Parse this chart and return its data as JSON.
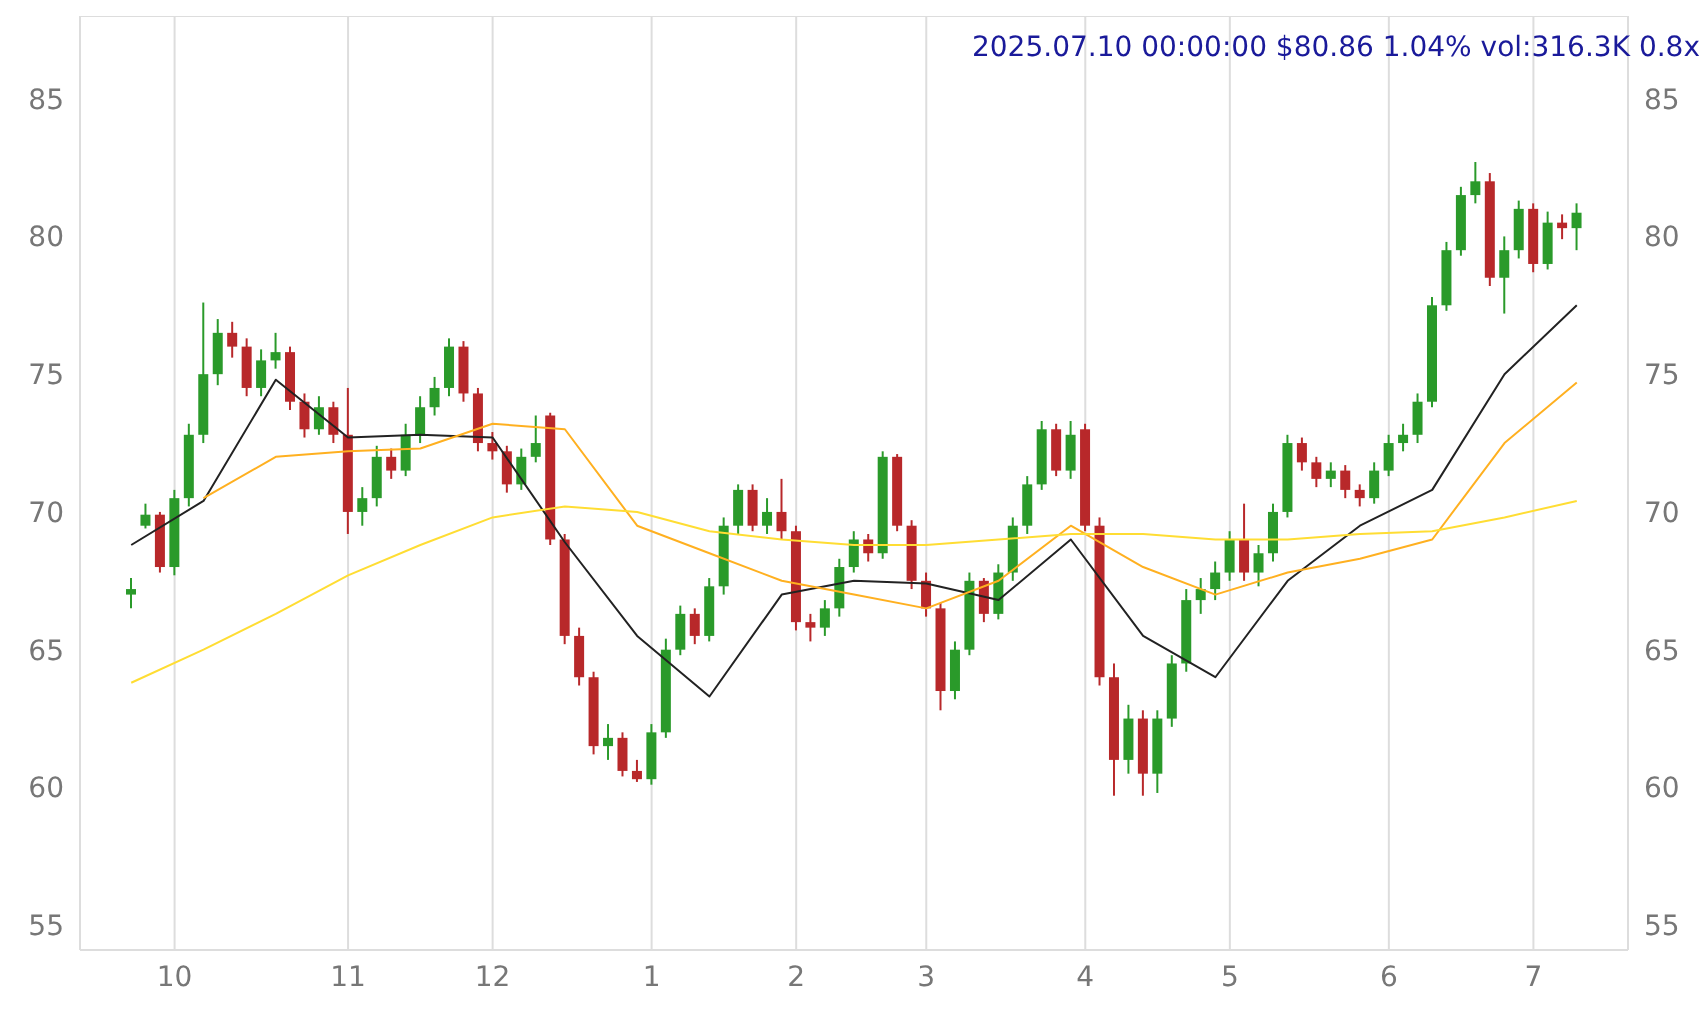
{
  "chart_data": {
    "type": "candlestick",
    "title": "2025.07.10 00:00:00 $80.86 1.04% vol:316.3K 0.8x",
    "categories": [
      null,
      null,
      null,
      "10",
      null,
      null,
      null,
      null,
      null,
      null,
      null,
      null,
      null,
      null,
      null,
      "11",
      null,
      null,
      null,
      null,
      null,
      null,
      null,
      null,
      null,
      "12",
      null,
      null,
      null,
      null,
      null,
      null,
      null,
      null,
      null,
      null,
      "1",
      null,
      null,
      null,
      null,
      null,
      null,
      null,
      null,
      null,
      "2",
      null,
      null,
      null,
      null,
      null,
      null,
      null,
      null,
      "3",
      null,
      null,
      null,
      null,
      null,
      null,
      null,
      null,
      null,
      null,
      "4",
      null,
      null,
      null,
      null,
      null,
      null,
      null,
      null,
      null,
      "5",
      null,
      null,
      null,
      null,
      null,
      null,
      null,
      null,
      null,
      null,
      "6",
      null,
      null,
      null,
      null,
      null,
      null,
      null,
      null,
      null,
      "7",
      null,
      null,
      null
    ],
    "ohlc": [
      [
        67.0,
        67.6,
        66.5,
        67.2
      ],
      [
        69.5,
        70.3,
        69.4,
        69.9
      ],
      [
        69.9,
        70.0,
        67.8,
        68.0
      ],
      [
        68.0,
        70.8,
        67.7,
        70.5
      ],
      [
        70.5,
        73.2,
        70.2,
        72.8
      ],
      [
        72.8,
        77.6,
        72.5,
        75.0
      ],
      [
        75.0,
        77.0,
        74.6,
        76.5
      ],
      [
        76.5,
        76.9,
        75.6,
        76.0
      ],
      [
        76.0,
        76.3,
        74.2,
        74.5
      ],
      [
        74.5,
        75.9,
        74.2,
        75.5
      ],
      [
        75.5,
        76.5,
        75.2,
        75.8
      ],
      [
        75.8,
        76.0,
        73.7,
        74.0
      ],
      [
        74.0,
        74.3,
        72.7,
        73.0
      ],
      [
        73.0,
        74.2,
        72.8,
        73.8
      ],
      [
        73.8,
        74.0,
        72.5,
        72.8
      ],
      [
        72.8,
        74.5,
        69.2,
        70.0
      ],
      [
        70.0,
        70.9,
        69.5,
        70.5
      ],
      [
        70.5,
        72.4,
        70.2,
        72.0
      ],
      [
        72.0,
        72.3,
        71.2,
        71.5
      ],
      [
        71.5,
        73.2,
        71.3,
        72.8
      ],
      [
        72.8,
        74.2,
        72.5,
        73.8
      ],
      [
        73.8,
        74.9,
        73.5,
        74.5
      ],
      [
        74.5,
        76.3,
        74.2,
        76.0
      ],
      [
        76.0,
        76.2,
        74.0,
        74.3
      ],
      [
        74.3,
        74.5,
        72.2,
        72.5
      ],
      [
        72.5,
        72.9,
        71.9,
        72.2
      ],
      [
        72.2,
        72.4,
        70.7,
        71.0
      ],
      [
        71.0,
        72.3,
        70.8,
        72.0
      ],
      [
        72.0,
        73.5,
        71.8,
        72.5
      ],
      [
        73.5,
        73.6,
        68.8,
        69.0
      ],
      [
        69.0,
        69.2,
        65.2,
        65.5
      ],
      [
        65.5,
        65.8,
        63.7,
        64.0
      ],
      [
        64.0,
        64.2,
        61.2,
        61.5
      ],
      [
        61.5,
        62.3,
        61.0,
        61.8
      ],
      [
        61.8,
        62.0,
        60.4,
        60.6
      ],
      [
        60.6,
        61.0,
        60.2,
        60.3
      ],
      [
        60.3,
        62.3,
        60.1,
        62.0
      ],
      [
        62.0,
        65.4,
        61.8,
        65.0
      ],
      [
        65.0,
        66.6,
        64.8,
        66.3
      ],
      [
        66.3,
        66.5,
        65.2,
        65.5
      ],
      [
        65.5,
        67.6,
        65.3,
        67.3
      ],
      [
        67.3,
        69.8,
        67.0,
        69.5
      ],
      [
        69.5,
        71.0,
        69.2,
        70.8
      ],
      [
        70.8,
        71.0,
        69.3,
        69.5
      ],
      [
        69.5,
        70.5,
        69.2,
        70.0
      ],
      [
        70.0,
        71.2,
        69.0,
        69.3
      ],
      [
        69.3,
        69.5,
        65.7,
        66.0
      ],
      [
        66.0,
        66.3,
        65.3,
        65.8
      ],
      [
        65.8,
        66.8,
        65.5,
        66.5
      ],
      [
        66.5,
        68.3,
        66.2,
        68.0
      ],
      [
        68.0,
        69.3,
        67.8,
        69.0
      ],
      [
        69.0,
        69.2,
        68.2,
        68.5
      ],
      [
        68.5,
        72.2,
        68.3,
        72.0
      ],
      [
        72.0,
        72.1,
        69.3,
        69.5
      ],
      [
        69.5,
        69.7,
        67.2,
        67.5
      ],
      [
        67.5,
        67.8,
        66.2,
        66.5
      ],
      [
        66.5,
        66.7,
        62.8,
        63.5
      ],
      [
        63.5,
        65.3,
        63.2,
        65.0
      ],
      [
        65.0,
        67.8,
        64.8,
        67.5
      ],
      [
        67.5,
        67.6,
        66.0,
        66.3
      ],
      [
        66.3,
        68.1,
        66.1,
        67.8
      ],
      [
        67.8,
        69.8,
        67.5,
        69.5
      ],
      [
        69.5,
        71.3,
        69.2,
        71.0
      ],
      [
        71.0,
        73.3,
        70.8,
        73.0
      ],
      [
        73.0,
        73.2,
        71.3,
        71.5
      ],
      [
        71.5,
        73.3,
        71.2,
        72.8
      ],
      [
        73.0,
        73.2,
        69.3,
        69.5
      ],
      [
        69.5,
        69.8,
        63.7,
        64.0
      ],
      [
        64.0,
        64.5,
        59.7,
        61.0
      ],
      [
        61.0,
        63.0,
        60.5,
        62.5
      ],
      [
        62.5,
        62.8,
        59.7,
        60.5
      ],
      [
        60.5,
        62.8,
        59.8,
        62.5
      ],
      [
        62.5,
        64.8,
        62.2,
        64.5
      ],
      [
        64.5,
        67.2,
        64.2,
        66.8
      ],
      [
        66.8,
        67.6,
        66.3,
        67.2
      ],
      [
        67.2,
        68.2,
        66.8,
        67.8
      ],
      [
        67.8,
        69.3,
        67.5,
        69.0
      ],
      [
        69.0,
        70.3,
        67.5,
        67.8
      ],
      [
        67.8,
        68.8,
        67.3,
        68.5
      ],
      [
        68.5,
        70.3,
        68.2,
        70.0
      ],
      [
        70.0,
        72.8,
        69.8,
        72.5
      ],
      [
        72.5,
        72.7,
        71.5,
        71.8
      ],
      [
        71.8,
        72.0,
        70.9,
        71.2
      ],
      [
        71.2,
        71.8,
        70.9,
        71.5
      ],
      [
        71.5,
        71.7,
        70.5,
        70.8
      ],
      [
        70.8,
        71.0,
        70.2,
        70.5
      ],
      [
        70.5,
        71.8,
        70.3,
        71.5
      ],
      [
        71.5,
        72.8,
        71.3,
        72.5
      ],
      [
        72.5,
        73.2,
        72.2,
        72.8
      ],
      [
        72.8,
        74.3,
        72.5,
        74.0
      ],
      [
        74.0,
        77.8,
        73.8,
        77.5
      ],
      [
        77.5,
        79.8,
        77.3,
        79.5
      ],
      [
        79.5,
        81.8,
        79.3,
        81.5
      ],
      [
        81.5,
        82.7,
        81.2,
        82.0
      ],
      [
        82.0,
        82.3,
        78.2,
        78.5
      ],
      [
        78.5,
        80.0,
        77.2,
        79.5
      ],
      [
        79.5,
        81.3,
        79.2,
        81.0
      ],
      [
        81.0,
        81.2,
        78.7,
        79.0
      ],
      [
        79.0,
        80.9,
        78.8,
        80.5
      ],
      [
        80.5,
        80.8,
        79.9,
        80.3
      ],
      [
        80.3,
        81.2,
        79.5,
        80.86
      ]
    ],
    "series": [
      {
        "type": "line",
        "color": "#222222",
        "values": [
          68.8,
          null,
          null,
          null,
          null,
          70.4,
          null,
          null,
          null,
          null,
          74.8,
          null,
          null,
          null,
          null,
          72.7,
          null,
          null,
          null,
          null,
          72.8,
          null,
          null,
          null,
          null,
          72.7,
          null,
          null,
          null,
          null,
          68.9,
          null,
          null,
          null,
          null,
          65.5,
          null,
          null,
          null,
          null,
          63.3,
          null,
          null,
          null,
          null,
          67.0,
          null,
          null,
          null,
          null,
          67.5,
          null,
          null,
          null,
          null,
          67.4,
          null,
          null,
          null,
          null,
          66.8,
          null,
          null,
          null,
          null,
          69.0,
          null,
          null,
          null,
          null,
          65.5,
          null,
          null,
          null,
          null,
          64.0,
          null,
          null,
          null,
          null,
          67.5,
          null,
          null,
          null,
          null,
          69.5,
          null,
          null,
          null,
          null,
          70.8,
          null,
          null,
          null,
          null,
          75.0,
          null,
          null,
          null,
          null,
          77.5
        ]
      },
      {
        "type": "line",
        "color": "#ffb020",
        "values": [
          null,
          null,
          null,
          null,
          null,
          70.5,
          null,
          null,
          null,
          null,
          72.0,
          null,
          null,
          null,
          null,
          72.2,
          null,
          null,
          null,
          null,
          72.3,
          null,
          null,
          null,
          null,
          73.2,
          null,
          null,
          null,
          null,
          73.0,
          null,
          null,
          null,
          null,
          69.5,
          null,
          null,
          null,
          null,
          68.5,
          null,
          null,
          null,
          null,
          67.5,
          null,
          null,
          null,
          null,
          67.0,
          null,
          null,
          null,
          null,
          66.5,
          null,
          null,
          null,
          null,
          67.5,
          null,
          null,
          null,
          null,
          69.5,
          null,
          null,
          null,
          null,
          68.0,
          null,
          null,
          null,
          null,
          67.0,
          null,
          null,
          null,
          null,
          67.8,
          null,
          null,
          null,
          null,
          68.3,
          null,
          null,
          null,
          null,
          69.0,
          null,
          null,
          null,
          null,
          72.5,
          null,
          null,
          null,
          null,
          74.7
        ]
      },
      {
        "type": "line",
        "color": "#ffdd33",
        "values": [
          63.8,
          null,
          null,
          null,
          null,
          65.0,
          null,
          null,
          null,
          null,
          66.3,
          null,
          null,
          null,
          null,
          67.7,
          null,
          null,
          null,
          null,
          68.8,
          null,
          null,
          null,
          null,
          69.8,
          null,
          null,
          null,
          null,
          70.2,
          null,
          null,
          null,
          null,
          70.0,
          null,
          null,
          null,
          null,
          69.3,
          null,
          null,
          null,
          null,
          69.0,
          null,
          null,
          null,
          null,
          68.8,
          null,
          null,
          null,
          null,
          68.8,
          null,
          null,
          null,
          null,
          69.0,
          null,
          null,
          null,
          null,
          69.2,
          null,
          null,
          null,
          null,
          69.2,
          null,
          null,
          null,
          null,
          69.0,
          null,
          null,
          null,
          null,
          69.0,
          null,
          null,
          null,
          null,
          69.2,
          null,
          null,
          null,
          null,
          69.3,
          null,
          null,
          null,
          null,
          69.8,
          null,
          null,
          null,
          null,
          70.4
        ]
      }
    ],
    "ylim": [
      54.1,
      88
    ],
    "yticks": [
      55,
      60,
      65,
      70,
      75,
      80,
      85
    ],
    "y2lim": [
      54.1,
      88
    ],
    "y2ticks": [
      55,
      60,
      65,
      70,
      75,
      80,
      85
    ],
    "grid": true
  }
}
